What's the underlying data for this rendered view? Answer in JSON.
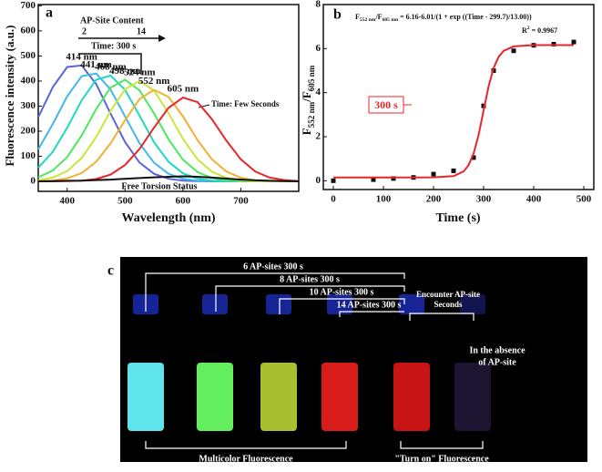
{
  "chart_data": [
    {
      "type": "line",
      "panel": "a",
      "xlabel": "Wavelength (nm)",
      "ylabel": "Fluorescence intensity (a.u.)",
      "x": [
        350,
        375,
        400,
        425,
        450,
        475,
        500,
        525,
        550,
        575,
        600,
        625,
        650,
        675,
        700,
        725,
        750,
        775,
        800
      ],
      "series": [
        {
          "color": "#5866d8",
          "values": [
            256,
            375,
            456,
            462,
            388,
            270,
            157,
            75,
            30,
            10,
            3,
            1,
            0,
            0,
            0,
            0,
            0,
            0,
            0
          ]
        },
        {
          "color": "#40b8ec",
          "values": [
            127,
            228,
            339,
            419,
            430,
            366,
            259,
            152,
            74,
            30,
            10,
            3,
            1,
            0,
            0,
            0,
            0,
            0,
            0
          ]
        },
        {
          "color": "#1fd8c0",
          "values": [
            54,
            117,
            214,
            323,
            405,
            422,
            365,
            262,
            156,
            78,
            32,
            11,
            3,
            1,
            0,
            0,
            0,
            0,
            0
          ]
        },
        {
          "color": "#4ee860",
          "values": [
            16,
            43,
            97,
            183,
            288,
            374,
            405,
            363,
            271,
            168,
            86,
            37,
            13,
            4,
            1,
            0,
            0,
            0,
            0
          ]
        },
        {
          "color": "#c8e838",
          "values": [
            4,
            15,
            41,
            93,
            177,
            280,
            367,
            400,
            362,
            272,
            169,
            88,
            38,
            14,
            4,
            1,
            0,
            0,
            0
          ]
        },
        {
          "color": "#f4b030",
          "values": [
            1,
            3,
            12,
            33,
            78,
            151,
            244,
            328,
            365,
            337,
            259,
            165,
            88,
            39,
            14,
            4,
            1,
            0,
            0
          ]
        },
        {
          "color": "#e8262a",
          "values": [
            0,
            0,
            1,
            3,
            9,
            27,
            65,
            129,
            214,
            293,
            334,
            316,
            248,
            162,
            88,
            39,
            15,
            5,
            1
          ]
        },
        {
          "color": "#111111",
          "values": [
            0,
            1,
            2,
            3,
            5,
            7,
            10,
            13,
            16,
            18,
            20,
            18,
            15,
            11,
            7,
            4,
            2,
            1,
            0
          ]
        }
      ],
      "peak_labels": [
        "414 nm",
        "441 nm",
        "468 nm",
        "498 nm",
        "524 nm",
        "552 nm",
        "605 nm"
      ],
      "content_label": "AP-Site  Content",
      "content_from": "2",
      "content_to": "14",
      "time_label": "Time: 300 s",
      "few_seconds": "Time:  Few Seconds",
      "free_torsion": "Free Torsion Status",
      "xlim": [
        350,
        800
      ],
      "xticks": [
        400,
        500,
        600,
        700
      ],
      "ylim": [
        -40,
        705
      ],
      "yticks": [
        0,
        100,
        200,
        300,
        400,
        500,
        600,
        700
      ]
    },
    {
      "type": "line",
      "panel": "b",
      "xlabel": "Time (s)",
      "ylabel": [
        "F",
        "552 nm",
        "/F",
        "605 nm"
      ],
      "equation": [
        "F",
        "552 nm",
        "/F",
        "605 nm",
        " = 6.16-6.01/(1 + exp ((Time - 299.7)/13.00))"
      ],
      "r2": [
        "R",
        "2",
        " = 0.9967"
      ],
      "annotation": "300 s",
      "series": [
        {
          "style": "points",
          "color": "#111111",
          "x": [
            0,
            80,
            120,
            160,
            200,
            240,
            280,
            300,
            320,
            360,
            400,
            440,
            480
          ],
          "values": [
            0,
            0.05,
            0.1,
            0.15,
            0.3,
            0.45,
            1.05,
            3.4,
            5.0,
            5.9,
            6.15,
            6.2,
            6.3
          ]
        },
        {
          "style": "line",
          "color": "#e8262a",
          "x": [
            0,
            100,
            200,
            240,
            260,
            270,
            280,
            290,
            300,
            310,
            320,
            330,
            340,
            360,
            400,
            480
          ],
          "values": [
            0.15,
            0.15,
            0.153,
            0.21,
            0.42,
            0.71,
            1.23,
            2.08,
            3.19,
            4.29,
            5.12,
            5.63,
            5.9,
            6.1,
            6.16,
            6.16
          ]
        }
      ],
      "xlim": [
        -20,
        520
      ],
      "xticks": [
        0,
        100,
        200,
        300,
        400,
        500
      ],
      "ylim": [
        -0.4,
        8
      ],
      "yticks": [
        0,
        2,
        4,
        6,
        8
      ]
    }
  ],
  "photo": {
    "panel": "c",
    "labels": [
      "6 AP-sites  300 s",
      "8  AP-sites  300 s",
      "10  AP-sites  300 s",
      "14  AP-sites  300 s"
    ],
    "encounter": [
      "Encounter AP-site",
      "Seconds"
    ],
    "absence": [
      "In the absence",
      "of AP-site"
    ],
    "multicolor": "Multicolor Fluorescence",
    "turn_on": "\"Turn on\" Fluorescence"
  }
}
